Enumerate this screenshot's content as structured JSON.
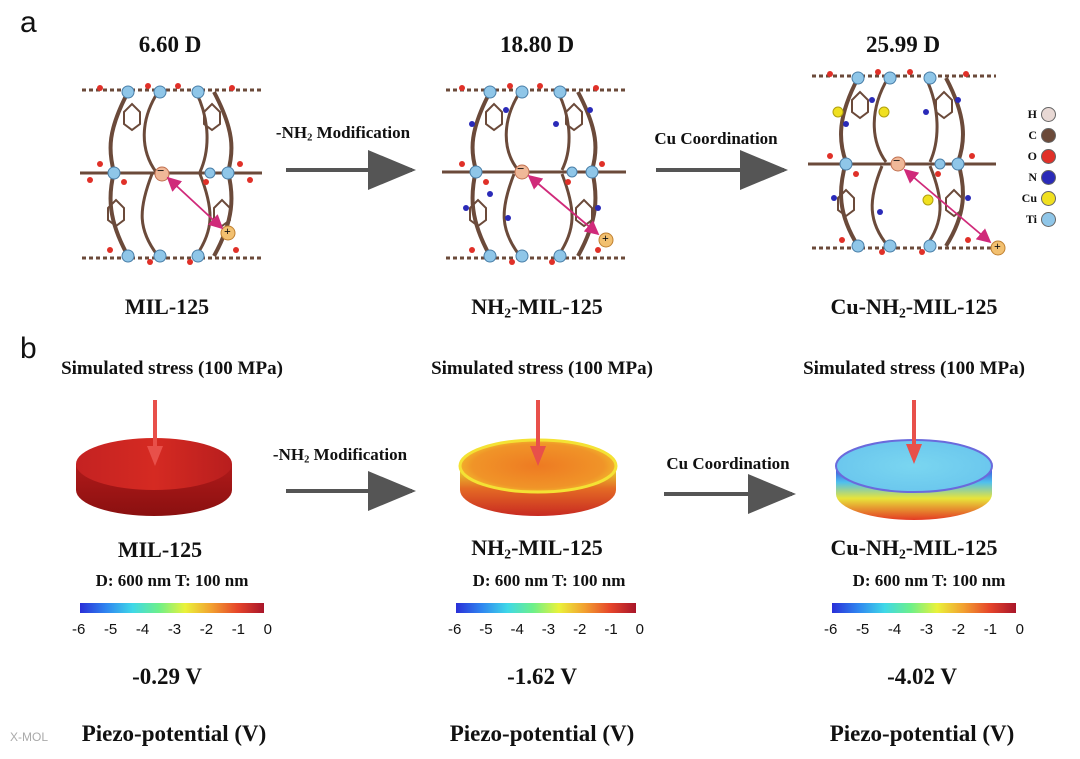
{
  "panel_a": {
    "letter": "a",
    "dipoles": [
      "6.60 D",
      "18.80 D",
      "25.99 D"
    ],
    "names": [
      {
        "pre": "MIL-125",
        "sub": "",
        "post": ""
      },
      {
        "pre": "NH",
        "sub": "2",
        "post": "-MIL-125"
      },
      {
        "pre": "Cu-NH",
        "sub": "2",
        "post": "-MIL-125"
      }
    ],
    "arrows": [
      {
        "pre": "-NH",
        "sub": "2",
        "post": " Modification"
      },
      {
        "pre": "Cu Coordination",
        "sub": "",
        "post": ""
      }
    ],
    "legend": [
      {
        "label": "H",
        "color": "#e8d8d4"
      },
      {
        "label": "C",
        "color": "#6b4a3a"
      },
      {
        "label": "O",
        "color": "#e03028"
      },
      {
        "label": "N",
        "color": "#2a2ab8"
      },
      {
        "label": "Cu",
        "color": "#f0e020"
      },
      {
        "label": "Ti",
        "color": "#8fc6e8"
      }
    ],
    "charge_minus": "−",
    "charge_plus": "+"
  },
  "panel_b": {
    "letter": "b",
    "stress": "Simulated stress (100 MPa)",
    "names": [
      {
        "pre": "MIL-125",
        "sub": "",
        "post": ""
      },
      {
        "pre": "NH",
        "sub": "2",
        "post": "-MIL-125"
      },
      {
        "pre": "Cu-NH",
        "sub": "2",
        "post": "-MIL-125"
      }
    ],
    "arrows": [
      {
        "pre": "-NH",
        "sub": "2",
        "post": " Modification"
      },
      {
        "pre": "Cu Coordination",
        "sub": "",
        "post": ""
      }
    ],
    "dims": "D: 600 nm  T: 100 nm",
    "colorbar_ticks": [
      "-6",
      "-5",
      "-4",
      "-3",
      "-2",
      "-1",
      "0"
    ],
    "voltages": [
      "-0.29 V",
      "-1.62 V",
      "-4.02 V"
    ],
    "axis_label": "Piezo-potential (V)"
  },
  "watermark": "X-MOL"
}
